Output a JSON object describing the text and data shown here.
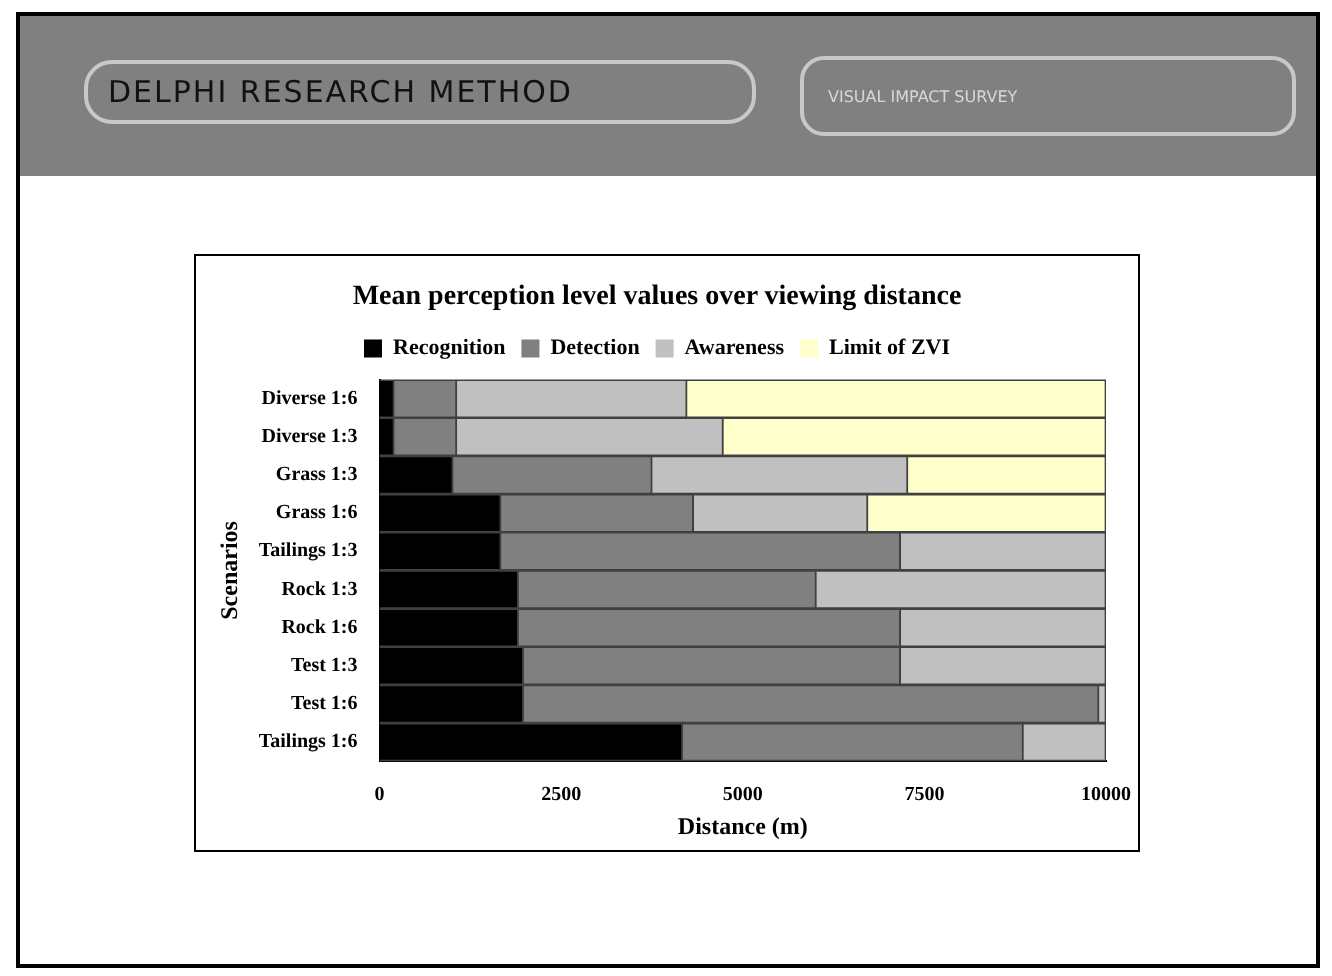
{
  "chart_data": {
    "type": "bar",
    "orientation": "horizontal",
    "stacked": true,
    "title": "Mean perception level values over viewing distance",
    "xlabel": "Distance (m)",
    "ylabel": "Scenarios",
    "annotations": [
      "DELPHI RESEARCH METHOD",
      "VISUAL IMPACT SURVEY"
    ],
    "categories": [
      "Diverse 1:6",
      "Diverse 1:3",
      "Grass 1:3",
      "Grass 1:6",
      "Tailings 1:3",
      "Rock 1:3",
      "Rock 1:6",
      "Test 1:3",
      "Test 1:6",
      "Tailings 1:6"
    ],
    "series": [
      {
        "name": "Recognition",
        "color": "#000000",
        "values": [
          200,
          200,
          1010,
          1670,
          1670,
          1910,
          1910,
          1980,
          1980,
          4170
        ]
      },
      {
        "name": "Detection",
        "color": "#808080",
        "values": [
          860,
          860,
          2740,
          2650,
          5500,
          4100,
          5260,
          5190,
          7920,
          4690
        ]
      },
      {
        "name": "Awareness",
        "color": "#c0c0c0",
        "values": [
          3170,
          3670,
          3520,
          2400,
          2830,
          3990,
          2830,
          2830,
          100,
          1140
        ]
      },
      {
        "name": "Limit of ZVI",
        "color": "#ffffcc",
        "values": [
          5770,
          5270,
          2730,
          3280,
          null,
          null,
          null,
          null,
          null,
          null
        ]
      }
    ],
    "xlim": [
      0,
      10000
    ],
    "xticks": [
      0,
      2500,
      5000,
      7500,
      10000
    ],
    "grid": false,
    "legend": "top"
  }
}
